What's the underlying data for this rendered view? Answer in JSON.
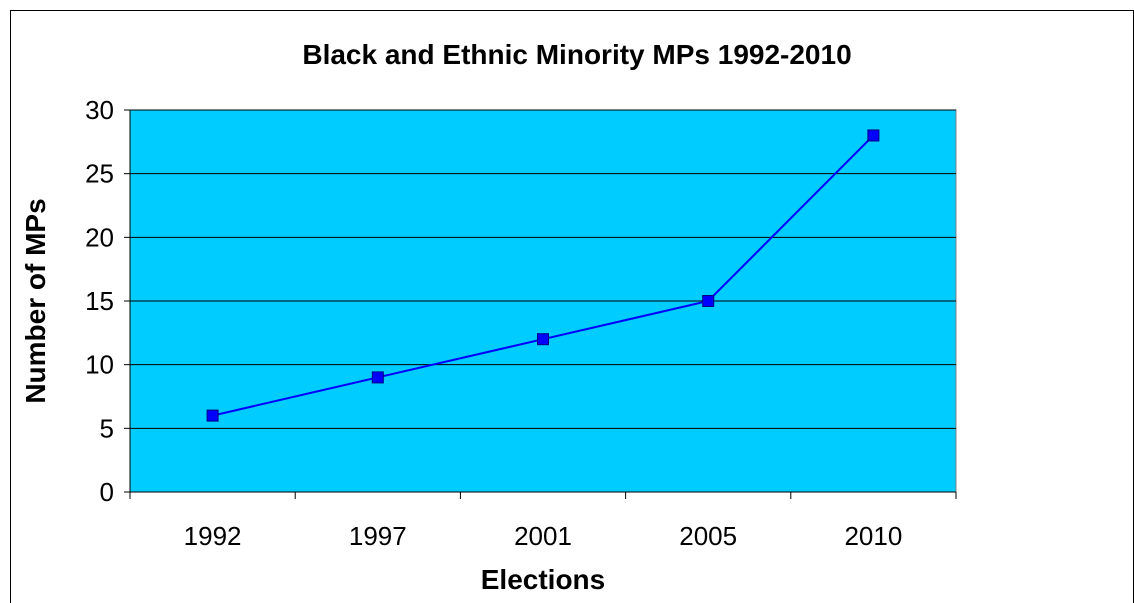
{
  "chart_data": {
    "type": "line",
    "title": "Black and Ethnic Minority MPs 1992-2010",
    "xlabel": "Elections",
    "ylabel": "Number of MPs",
    "categories": [
      "1992",
      "1997",
      "2001",
      "2005",
      "2010"
    ],
    "series": [
      {
        "values": [
          6,
          9,
          12,
          15,
          28
        ]
      }
    ],
    "ylim": [
      0,
      30
    ],
    "yticks": [
      "0",
      "5",
      "10",
      "15",
      "20",
      "25",
      "30"
    ],
    "grid": true,
    "legend": "none",
    "colors": {
      "plot_background": "#00CCFF",
      "line": "#0000FF",
      "marker": "#0000FF",
      "gridline": "#000000"
    }
  }
}
